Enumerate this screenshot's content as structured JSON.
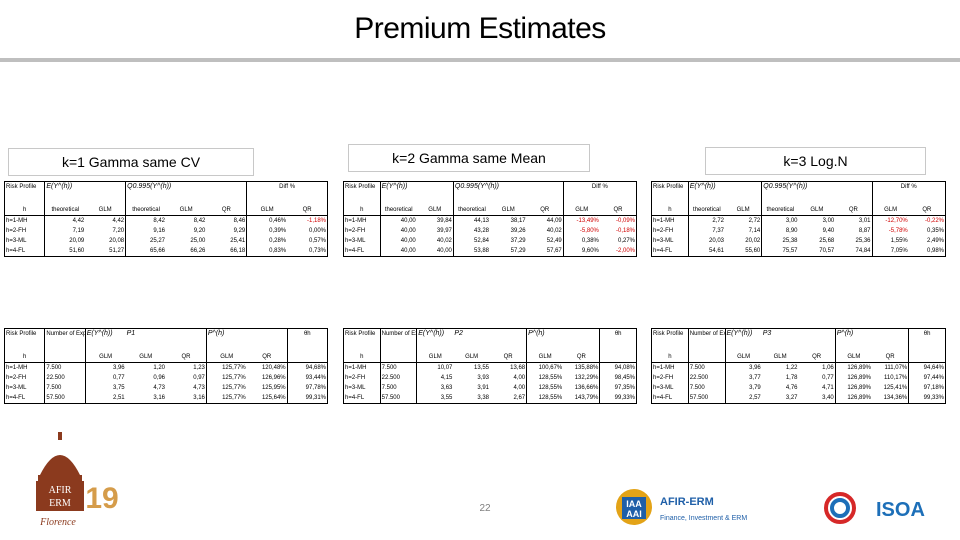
{
  "slide": {
    "title": "Premium Estimates",
    "page_number": "22",
    "columns": [
      {
        "label": "k=1 Gamma same CV"
      },
      {
        "label": "k=2 Gamma same Mean"
      },
      {
        "label": "k=3 Log.N"
      }
    ]
  },
  "upper_tables": [
    {
      "hdr_profile": "Risk Profile",
      "hdr_h": "h",
      "hdr_e": "E(Y^(h))",
      "hdr_q": "Q0.995(Y^(h))",
      "hdr_diff": "Diff %",
      "sub": [
        "theoretical",
        "GLM",
        "theoretical",
        "GLM",
        "QR",
        "GLM",
        "QR"
      ],
      "rows": [
        {
          "h": "h=1-MH",
          "v": [
            "4,42",
            "4,42",
            "8,42",
            "8,42",
            "8,46",
            "0,46%",
            "-1,18%"
          ]
        },
        {
          "h": "h=2-FH",
          "v": [
            "7,19",
            "7,20",
            "9,16",
            "9,20",
            "9,29",
            "0,39%",
            "0,00%"
          ]
        },
        {
          "h": "h=3-ML",
          "v": [
            "20,09",
            "20,08",
            "25,27",
            "25,00",
            "25,41",
            "0,28%",
            "0,57%"
          ]
        },
        {
          "h": "h=4-FL",
          "v": [
            "51,60",
            "51,27",
            "65,66",
            "66,26",
            "66,18",
            "0,83%",
            "0,73%"
          ]
        }
      ]
    },
    {
      "hdr_profile": "Risk Profile",
      "hdr_h": "h",
      "hdr_e": "E(Y^(h))",
      "hdr_q": "Q0.995(Y^(h))",
      "hdr_diff": "Diff %",
      "sub": [
        "theoretical",
        "GLM",
        "theoretical",
        "GLM",
        "QR",
        "GLM",
        "QR"
      ],
      "rows": [
        {
          "h": "h=1-MH",
          "v": [
            "40,00",
            "39,84",
            "44,13",
            "38,17",
            "44,09",
            "-13,49%",
            "-0,09%"
          ]
        },
        {
          "h": "h=2-FH",
          "v": [
            "40,00",
            "39,97",
            "43,28",
            "39,26",
            "40,02",
            "-5,80%",
            "-0,18%"
          ]
        },
        {
          "h": "h=3-ML",
          "v": [
            "40,00",
            "40,02",
            "52,84",
            "37,29",
            "52,49",
            "0,38%",
            "0,27%"
          ]
        },
        {
          "h": "h=4-FL",
          "v": [
            "40,00",
            "40,00",
            "53,88",
            "57,29",
            "57,67",
            "9,60%",
            "-2,00%"
          ]
        }
      ]
    },
    {
      "hdr_profile": "Risk Profile",
      "hdr_h": "h",
      "hdr_e": "E(Y^(h))",
      "hdr_q": "Q0.995(Y^(h))",
      "hdr_diff": "Diff %",
      "sub": [
        "theoretical",
        "GLM",
        "theoretical",
        "GLM",
        "QR",
        "GLM",
        "QR"
      ],
      "rows": [
        {
          "h": "h=1-MH",
          "v": [
            "2,72",
            "2,72",
            "3,00",
            "3,00",
            "3,01",
            "-12,70%",
            "-0,22%"
          ]
        },
        {
          "h": "h=2-FH",
          "v": [
            "7,37",
            "7,14",
            "8,90",
            "9,40",
            "8,87",
            "-5,78%",
            "0,35%"
          ]
        },
        {
          "h": "h=3-ML",
          "v": [
            "20,03",
            "20,02",
            "25,38",
            "25,68",
            "25,36",
            "1,55%",
            "2,49%"
          ]
        },
        {
          "h": "h=4-FL",
          "v": [
            "54,61",
            "55,60",
            "75,57",
            "70,57",
            "74,84",
            "7,05%",
            "0,98%"
          ]
        }
      ]
    }
  ],
  "lower_tables": [
    {
      "hdr_profile": "Risk Profile",
      "hdr_h": "h",
      "hdr_exp": "Number of Exposure",
      "hdr_e": "E(Y^(h))",
      "hdr_p": "P1",
      "hdr_ph": "P^(h)",
      "hdr_theta": "θh",
      "sub": [
        "GLM",
        "GLM",
        "QR",
        "GLM",
        "QR"
      ],
      "rows": [
        {
          "h": "h=1-MH",
          "v": [
            "7.500",
            "3,96",
            "1,20",
            "1,23",
            "125,77%",
            "120,48%",
            "94,68%"
          ]
        },
        {
          "h": "h=2-FH",
          "v": [
            "22.500",
            "0,77",
            "0,96",
            "0,97",
            "125,77%",
            "126,96%",
            "93,44%"
          ]
        },
        {
          "h": "h=3-ML",
          "v": [
            "7.500",
            "3,75",
            "4,73",
            "4,73",
            "125,77%",
            "125,95%",
            "97,78%"
          ]
        },
        {
          "h": "h=4-FL",
          "v": [
            "57.500",
            "2,51",
            "3,16",
            "3,16",
            "125,77%",
            "125,64%",
            "99,31%"
          ]
        }
      ]
    },
    {
      "hdr_profile": "Risk Profile",
      "hdr_h": "h",
      "hdr_exp": "Number of Exposure",
      "hdr_e": "E(Y^(h))",
      "hdr_p": "P2",
      "hdr_ph": "P^(h)",
      "hdr_theta": "θh",
      "sub": [
        "GLM",
        "GLM",
        "QR",
        "GLM",
        "QR"
      ],
      "rows": [
        {
          "h": "h=1-MH",
          "v": [
            "7.500",
            "10,07",
            "13,55",
            "13,68",
            "100,67%",
            "135,88%",
            "94,08%"
          ]
        },
        {
          "h": "h=2-FH",
          "v": [
            "22.500",
            "4,15",
            "3,93",
            "4,00",
            "128,55%",
            "132,29%",
            "98,45%"
          ]
        },
        {
          "h": "h=3-ML",
          "v": [
            "7.500",
            "3,63",
            "3,91",
            "4,00",
            "128,55%",
            "136,66%",
            "97,35%"
          ]
        },
        {
          "h": "h=4-FL",
          "v": [
            "57.500",
            "3,55",
            "3,38",
            "2,67",
            "128,55%",
            "143,79%",
            "99,33%"
          ]
        }
      ]
    },
    {
      "hdr_profile": "Risk Profile",
      "hdr_h": "h",
      "hdr_exp": "Number of Exposure",
      "hdr_e": "E(Y^(h))",
      "hdr_p": "P3",
      "hdr_ph": "P^(h)",
      "hdr_theta": "θh",
      "sub": [
        "GLM",
        "GLM",
        "QR",
        "GLM",
        "QR"
      ],
      "rows": [
        {
          "h": "h=1-MH",
          "v": [
            "7.500",
            "3,96",
            "1,22",
            "1,06",
            "126,89%",
            "111,07%",
            "94,64%"
          ]
        },
        {
          "h": "h=2-FH",
          "v": [
            "22.500",
            "3,77",
            "1,78",
            "0,77",
            "126,89%",
            "110,17%",
            "97,44%"
          ]
        },
        {
          "h": "h=3-ML",
          "v": [
            "7.500",
            "3,79",
            "4,76",
            "4,71",
            "126,89%",
            "125,41%",
            "97,18%"
          ]
        },
        {
          "h": "h=4-FL",
          "v": [
            "57.500",
            "2,57",
            "3,27",
            "3,40",
            "126,89%",
            "134,36%",
            "99,33%"
          ]
        }
      ]
    }
  ],
  "logos": {
    "afir_text_top": "AFIR",
    "afir_text_mid": "ERM",
    "afir_year": "19",
    "afir_city": "Florence",
    "iaa_top": "IAA",
    "iaa_bottom": "AAI",
    "iaa_name": "AFIR-ERM",
    "iaa_tagline": "Finance, Investment & ERM",
    "isoa_name": "ISOA"
  },
  "colors": {
    "title_rule": "#bfbfbf",
    "negative": "#d00000",
    "afir_brown": "#8b3a1e",
    "afir_gold": "#d59c4a",
    "iaa_blue": "#1f5fa8",
    "iaa_gold": "#e3a317",
    "isoa_red": "#d62828",
    "isoa_blue": "#1d6fb8"
  }
}
